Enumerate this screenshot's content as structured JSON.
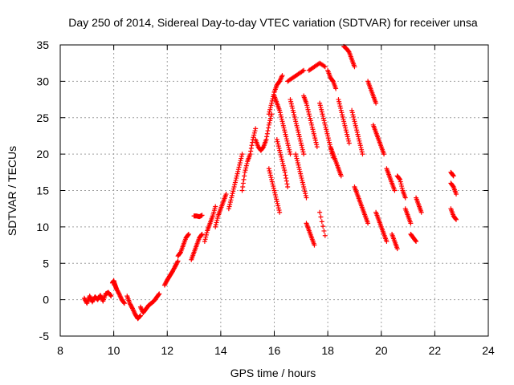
{
  "chart_data": {
    "type": "scatter",
    "title": "Day 250 of 2014, Sidereal Day-to-day VTEC variation (SDTVAR) for receiver unsa",
    "xlabel": "GPS time / hours",
    "ylabel": "SDTVAR / TECUs",
    "xlim": [
      8,
      24
    ],
    "ylim": [
      -5,
      35
    ],
    "xticks": [
      "8",
      "10",
      "12",
      "14",
      "16",
      "18",
      "20",
      "22",
      "24"
    ],
    "yticks": [
      "-5",
      "0",
      "5",
      "10",
      "15",
      "20",
      "25",
      "30",
      "35"
    ],
    "grid": true,
    "marker": "+",
    "color": "#ff0000",
    "series": [
      {
        "name": "SDTVAR",
        "segments": [
          [
            [
              8.9,
              0.2
            ],
            [
              9.0,
              -0.5
            ],
            [
              9.1,
              0.5
            ],
            [
              9.2,
              -0.3
            ],
            [
              9.3,
              0.4
            ],
            [
              9.4,
              0.0
            ],
            [
              9.5,
              0.6
            ],
            [
              9.6,
              -0.2
            ],
            [
              9.7,
              0.8
            ],
            [
              9.8,
              1.0
            ],
            [
              9.9,
              0.5
            ]
          ],
          [
            [
              9.95,
              2.3
            ],
            [
              10.0,
              2.6
            ],
            [
              10.05,
              2.0
            ],
            [
              10.1,
              1.5
            ],
            [
              10.2,
              0.8
            ],
            [
              10.3,
              0.0
            ],
            [
              10.4,
              -0.5
            ]
          ],
          [
            [
              10.5,
              0.5
            ],
            [
              10.6,
              -0.5
            ],
            [
              10.7,
              -1.2
            ],
            [
              10.8,
              -2.0
            ],
            [
              10.9,
              -2.6
            ],
            [
              11.0,
              -2.2
            ]
          ],
          [
            [
              11.0,
              -1.0
            ],
            [
              11.1,
              -1.8
            ],
            [
              11.2,
              -1.3
            ],
            [
              11.3,
              -0.8
            ],
            [
              11.4,
              -0.5
            ],
            [
              11.5,
              -0.2
            ],
            [
              11.6,
              0.3
            ],
            [
              11.7,
              0.8
            ]
          ],
          [
            [
              11.9,
              2.0
            ],
            [
              12.0,
              2.7
            ],
            [
              12.1,
              3.3
            ],
            [
              12.2,
              3.9
            ],
            [
              12.3,
              4.6
            ],
            [
              12.4,
              5.3
            ]
          ],
          [
            [
              12.4,
              6.0
            ],
            [
              12.5,
              6.5
            ],
            [
              12.6,
              7.5
            ],
            [
              12.7,
              8.5
            ],
            [
              12.8,
              9.0
            ]
          ],
          [
            [
              12.9,
              5.5
            ],
            [
              13.0,
              6.5
            ],
            [
              13.1,
              7.5
            ],
            [
              13.2,
              8.5
            ],
            [
              13.3,
              9.0
            ]
          ],
          [
            [
              13.0,
              11.5
            ],
            [
              13.1,
              11.5
            ],
            [
              13.2,
              11.4
            ],
            [
              13.3,
              11.6
            ]
          ],
          [
            [
              13.4,
              8.0
            ],
            [
              13.5,
              9.5
            ],
            [
              13.6,
              10.5
            ],
            [
              13.7,
              11.5
            ],
            [
              13.8,
              12.8
            ]
          ],
          [
            [
              13.8,
              10.0
            ],
            [
              13.9,
              11.5
            ],
            [
              14.0,
              12.5
            ],
            [
              14.1,
              13.5
            ],
            [
              14.2,
              14.5
            ]
          ],
          [
            [
              14.3,
              12.5
            ],
            [
              14.4,
              14.0
            ],
            [
              14.5,
              15.5
            ],
            [
              14.6,
              17.0
            ],
            [
              14.7,
              18.5
            ],
            [
              14.8,
              20.0
            ]
          ],
          [
            [
              14.8,
              15.0
            ],
            [
              14.9,
              17.5
            ],
            [
              15.0,
              19.0
            ],
            [
              15.1,
              20.0
            ],
            [
              15.2,
              22.0
            ],
            [
              15.3,
              23.5
            ]
          ],
          [
            [
              15.3,
              22.0
            ],
            [
              15.4,
              21.0
            ],
            [
              15.5,
              20.5
            ],
            [
              15.6,
              21.0
            ],
            [
              15.7,
              22.0
            ],
            [
              15.8,
              24.0
            ],
            [
              15.9,
              25.5
            ]
          ],
          [
            [
              15.8,
              25.5
            ],
            [
              15.9,
              27.0
            ],
            [
              16.0,
              28.5
            ],
            [
              16.1,
              29.5
            ],
            [
              16.2,
              30.0
            ],
            [
              16.3,
              30.8
            ]
          ],
          [
            [
              16.0,
              28.0
            ],
            [
              16.1,
              27.0
            ],
            [
              16.2,
              26.0
            ],
            [
              16.3,
              24.5
            ],
            [
              16.4,
              23.0
            ],
            [
              16.5,
              21.5
            ],
            [
              16.6,
              20.0
            ]
          ],
          [
            [
              16.1,
              22.0
            ],
            [
              16.2,
              20.5
            ],
            [
              16.3,
              19.0
            ],
            [
              16.4,
              17.5
            ],
            [
              16.5,
              15.5
            ]
          ],
          [
            [
              15.8,
              18.0
            ],
            [
              15.9,
              16.5
            ],
            [
              16.0,
              15.0
            ],
            [
              16.1,
              13.5
            ],
            [
              16.2,
              12.0
            ]
          ],
          [
            [
              16.5,
              30.0
            ],
            [
              16.7,
              30.5
            ],
            [
              16.9,
              31.0
            ],
            [
              17.1,
              31.5
            ]
          ],
          [
            [
              16.6,
              27.5
            ],
            [
              16.7,
              26.0
            ],
            [
              16.8,
              24.5
            ],
            [
              16.9,
              23.0
            ],
            [
              17.0,
              21.5
            ],
            [
              17.1,
              20.0
            ]
          ],
          [
            [
              16.8,
              20.0
            ],
            [
              16.9,
              18.5
            ],
            [
              17.0,
              17.0
            ],
            [
              17.1,
              15.5
            ],
            [
              17.2,
              14.0
            ]
          ],
          [
            [
              17.1,
              28.0
            ],
            [
              17.2,
              27.0
            ],
            [
              17.3,
              25.5
            ],
            [
              17.4,
              24.0
            ],
            [
              17.5,
              22.5
            ],
            [
              17.6,
              21.0
            ]
          ],
          [
            [
              17.3,
              31.5
            ],
            [
              17.5,
              32.0
            ],
            [
              17.7,
              32.5
            ],
            [
              17.9,
              32.0
            ]
          ],
          [
            [
              17.7,
              27.0
            ],
            [
              17.8,
              25.5
            ],
            [
              17.9,
              24.0
            ],
            [
              18.0,
              22.5
            ],
            [
              18.1,
              21.0
            ],
            [
              18.2,
              19.5
            ]
          ],
          [
            [
              17.2,
              10.5
            ],
            [
              17.3,
              9.5
            ],
            [
              17.4,
              8.5
            ],
            [
              17.5,
              7.5
            ]
          ],
          [
            [
              17.7,
              12.0
            ],
            [
              17.9,
              8.8
            ]
          ],
          [
            [
              18.0,
              31.5
            ],
            [
              18.1,
              30.5
            ],
            [
              18.2,
              30.0
            ],
            [
              18.3,
              29.0
            ]
          ],
          [
            [
              18.1,
              21.0
            ],
            [
              18.2,
              20.0
            ],
            [
              18.3,
              19.0
            ],
            [
              18.4,
              18.0
            ],
            [
              18.5,
              17.0
            ]
          ],
          [
            [
              18.4,
              27.5
            ],
            [
              18.5,
              26.0
            ],
            [
              18.6,
              24.5
            ],
            [
              18.7,
              23.0
            ],
            [
              18.8,
              21.5
            ]
          ],
          [
            [
              18.6,
              34.8
            ],
            [
              18.7,
              34.5
            ],
            [
              18.8,
              34.0
            ],
            [
              18.9,
              33.0
            ],
            [
              19.0,
              32.0
            ]
          ],
          [
            [
              18.9,
              26.0
            ],
            [
              19.0,
              24.5
            ],
            [
              19.1,
              23.0
            ],
            [
              19.2,
              21.5
            ],
            [
              19.3,
              20.0
            ]
          ],
          [
            [
              19.0,
              15.5
            ],
            [
              19.1,
              14.5
            ],
            [
              19.2,
              13.5
            ],
            [
              19.3,
              12.5
            ],
            [
              19.4,
              11.5
            ],
            [
              19.5,
              10.5
            ]
          ],
          [
            [
              19.5,
              30.0
            ],
            [
              19.6,
              29.0
            ],
            [
              19.7,
              28.0
            ],
            [
              19.8,
              27.0
            ]
          ],
          [
            [
              19.7,
              24.0
            ],
            [
              19.8,
              23.0
            ],
            [
              19.9,
              22.0
            ],
            [
              20.0,
              21.0
            ],
            [
              20.1,
              20.0
            ]
          ],
          [
            [
              19.8,
              12.0
            ],
            [
              19.9,
              11.0
            ],
            [
              20.0,
              10.0
            ],
            [
              20.1,
              9.0
            ],
            [
              20.2,
              8.0
            ]
          ],
          [
            [
              20.2,
              18.0
            ],
            [
              20.3,
              17.0
            ],
            [
              20.4,
              16.0
            ],
            [
              20.5,
              15.0
            ]
          ],
          [
            [
              20.4,
              9.0
            ],
            [
              20.5,
              8.0
            ],
            [
              20.6,
              7.0
            ]
          ],
          [
            [
              20.6,
              17.0
            ],
            [
              20.7,
              16.5
            ],
            [
              20.8,
              15.0
            ],
            [
              20.9,
              14.0
            ]
          ],
          [
            [
              20.9,
              12.5
            ],
            [
              21.0,
              11.5
            ],
            [
              21.1,
              10.5
            ]
          ],
          [
            [
              21.1,
              9.0
            ],
            [
              21.2,
              8.5
            ],
            [
              21.3,
              8.0
            ]
          ],
          [
            [
              21.3,
              14.0
            ],
            [
              21.4,
              13.0
            ],
            [
              21.5,
              12.0
            ]
          ],
          [
            [
              22.6,
              16.0
            ],
            [
              22.7,
              15.5
            ],
            [
              22.8,
              14.5
            ]
          ],
          [
            [
              22.6,
              17.5
            ],
            [
              22.7,
              17.0
            ]
          ],
          [
            [
              22.6,
              12.5
            ],
            [
              22.7,
              11.5
            ],
            [
              22.8,
              11.0
            ]
          ]
        ]
      }
    ]
  }
}
